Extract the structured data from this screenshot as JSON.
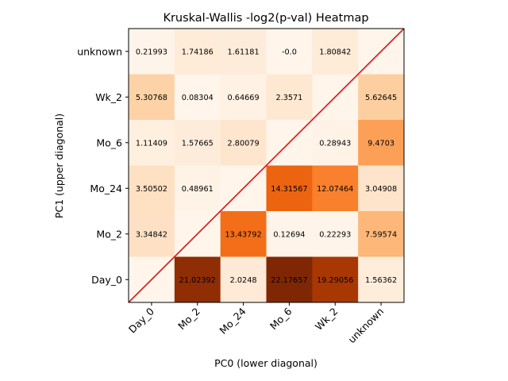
{
  "chart_data": {
    "type": "heatmap",
    "title": "Kruskal-Wallis -log2(p-val) Heatmap",
    "xlabel": "PC0 (lower diagonal)",
    "ylabel": "PC1 (upper diagonal)",
    "categories": [
      "Day_0",
      "Mo_2",
      "Mo_24",
      "Mo_6",
      "Wk_2",
      "unknown"
    ],
    "x_order": [
      "Day_0",
      "Mo_2",
      "Mo_24",
      "Mo_6",
      "Wk_2",
      "unknown"
    ],
    "y_order_top_to_bottom": [
      "unknown",
      "Wk_2",
      "Mo_6",
      "Mo_24",
      "Mo_2",
      "Day_0"
    ],
    "rows": [
      {
        "y": "unknown",
        "values": [
          0.21993,
          1.74186,
          1.61181,
          -0.0,
          1.80842,
          null
        ],
        "labels": [
          "0.21993",
          "1.74186",
          "1.61181",
          "-0.0",
          "1.80842",
          ""
        ]
      },
      {
        "y": "Wk_2",
        "values": [
          5.30768,
          0.08304,
          0.64669,
          2.3571,
          null,
          5.62645
        ],
        "labels": [
          "5.30768",
          "0.08304",
          "0.64669",
          "2.3571",
          "",
          "5.62645"
        ]
      },
      {
        "y": "Mo_6",
        "values": [
          1.11409,
          1.57665,
          2.80079,
          null,
          0.28943,
          9.4703
        ],
        "labels": [
          "1.11409",
          "1.57665",
          "2.80079",
          "",
          "0.28943",
          "9.4703"
        ]
      },
      {
        "y": "Mo_24",
        "values": [
          3.50502,
          0.48961,
          null,
          14.31567,
          12.07464,
          3.04908
        ],
        "labels": [
          "3.50502",
          "0.48961",
          "",
          "14.31567",
          "12.07464",
          "3.04908"
        ]
      },
      {
        "y": "Mo_2",
        "values": [
          3.34842,
          null,
          13.43792,
          0.12694,
          0.22293,
          7.59574
        ],
        "labels": [
          "3.34842",
          "",
          "13.43792",
          "0.12694",
          "0.22293",
          "7.59574"
        ]
      },
      {
        "y": "Day_0",
        "values": [
          null,
          21.02392,
          2.0248,
          22.17657,
          19.29056,
          1.56362
        ],
        "labels": [
          "",
          "21.02392",
          "2.0248",
          "22.17657",
          "19.29056",
          "1.56362"
        ]
      }
    ],
    "colormap": "Oranges",
    "vmin": 0,
    "vmax": 22.17657,
    "diagonal_line_color": "#d62728",
    "grid": false,
    "legend": "none"
  }
}
